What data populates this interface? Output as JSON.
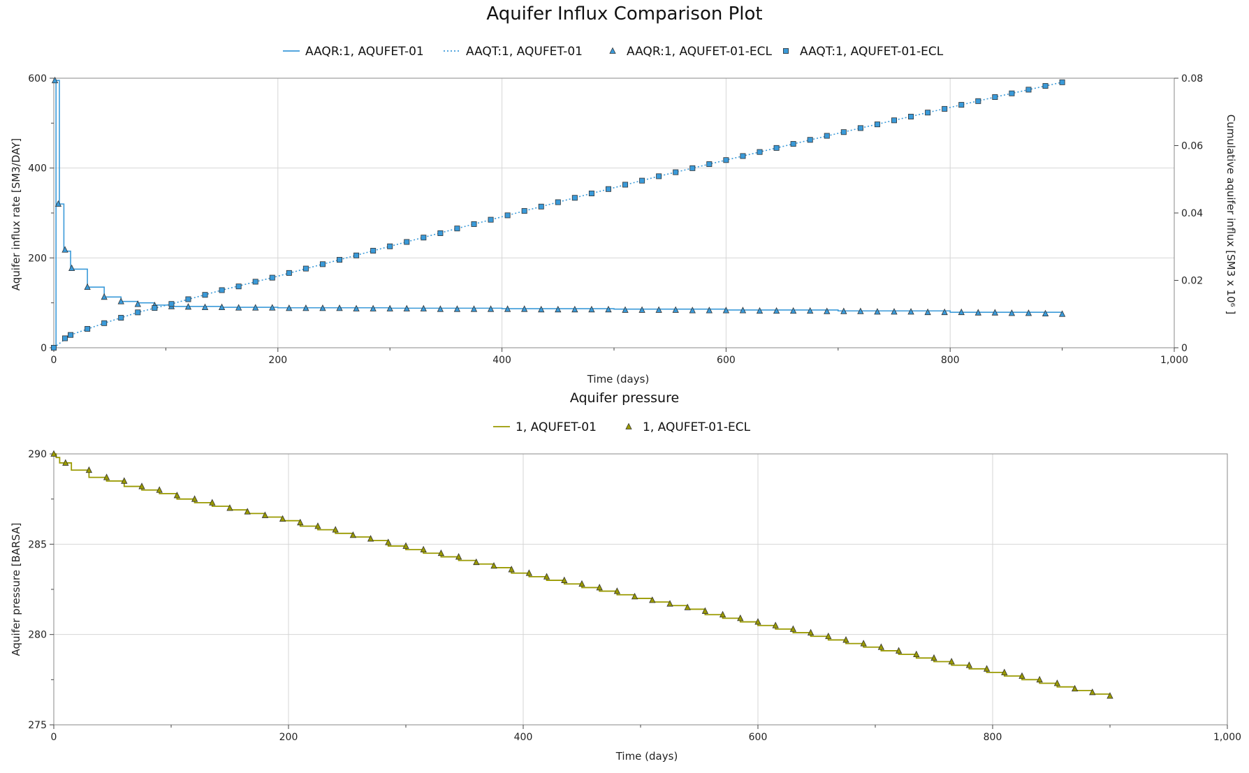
{
  "title": "Aquifer Influx Comparison Plot",
  "chart_data": [
    {
      "type": "line",
      "title": "",
      "xlabel": "Time (days)",
      "ylabel": "Aquifer influx rate [SM3/DAY]",
      "y2label": "Cumulative aquifer influx [SM3 x 10⁶ ]",
      "xlim": [
        0,
        1000
      ],
      "ylim": [
        0,
        600
      ],
      "y2lim": [
        0,
        0.08
      ],
      "xticks": [
        "0",
        "200",
        "400",
        "600",
        "800",
        "1,000"
      ],
      "yticks": [
        "0",
        "200",
        "400",
        "600"
      ],
      "y2ticks": [
        "0",
        "0.02",
        "0.04",
        "0.06",
        "0.08"
      ],
      "grid": true,
      "legend_position": "top",
      "series": [
        {
          "name": "AAQR:1, AQUFET-01",
          "style": "step-line",
          "axis": "left",
          "color": "#3a9ad9",
          "x": [
            0,
            2,
            5,
            9,
            15,
            30,
            45,
            60,
            75,
            90,
            105,
            150,
            200,
            300,
            400,
            500,
            600,
            700,
            800,
            900
          ],
          "y": [
            0,
            595,
            320,
            215,
            175,
            135,
            113,
            103,
            100,
            95,
            92,
            90,
            89,
            88,
            87,
            86,
            84,
            82,
            79,
            75
          ]
        },
        {
          "name": "AAQT:1, AQUFET-01",
          "style": "dotted-line",
          "axis": "right",
          "color": "#3a9ad9",
          "x": [
            0,
            15,
            45,
            75,
            105,
            150,
            195,
            240,
            300,
            360,
            420,
            480,
            540,
            600,
            660,
            720,
            780,
            840,
            900
          ],
          "y": [
            0,
            0.0038,
            0.0073,
            0.0105,
            0.013,
            0.0171,
            0.0208,
            0.0248,
            0.0301,
            0.0354,
            0.0406,
            0.0458,
            0.0509,
            0.0557,
            0.0605,
            0.0652,
            0.0698,
            0.0744,
            0.0788
          ]
        },
        {
          "name": "AAQR:1, AQUFET-01-ECL",
          "style": "triangle-markers",
          "axis": "left",
          "color": "#3a9ad9",
          "x": [
            1,
            4,
            10,
            16,
            30,
            45,
            60,
            75,
            90,
            105,
            120,
            135,
            150,
            165,
            180,
            195,
            210,
            225,
            240,
            255,
            270,
            285,
            300,
            315,
            330,
            345,
            360,
            375,
            390,
            405,
            420,
            435,
            450,
            465,
            480,
            495,
            510,
            525,
            540,
            555,
            570,
            585,
            600,
            615,
            630,
            645,
            660,
            675,
            690,
            705,
            720,
            735,
            750,
            765,
            780,
            795,
            810,
            825,
            840,
            855,
            870,
            885,
            900
          ],
          "y": [
            595,
            320,
            218,
            177,
            135,
            113,
            103,
            97,
            94,
            92,
            91,
            90,
            90,
            89,
            89,
            89,
            88,
            88,
            88,
            88,
            87,
            87,
            87,
            87,
            87,
            86,
            86,
            86,
            86,
            86,
            86,
            85,
            85,
            85,
            85,
            85,
            84,
            84,
            84,
            84,
            83,
            83,
            83,
            83,
            82,
            82,
            82,
            82,
            81,
            81,
            81,
            80,
            80,
            80,
            79,
            79,
            79,
            78,
            78,
            77,
            77,
            76,
            75
          ]
        },
        {
          "name": "AAQT:1, AQUFET-01-ECL",
          "style": "square-markers",
          "axis": "right",
          "color": "#3a9ad9",
          "x": [
            0,
            10,
            15,
            30,
            45,
            60,
            75,
            90,
            105,
            120,
            135,
            150,
            165,
            180,
            195,
            210,
            225,
            240,
            255,
            270,
            285,
            300,
            315,
            330,
            345,
            360,
            375,
            390,
            405,
            420,
            435,
            450,
            465,
            480,
            495,
            510,
            525,
            540,
            555,
            570,
            585,
            600,
            615,
            630,
            645,
            660,
            675,
            690,
            705,
            720,
            735,
            750,
            765,
            780,
            795,
            810,
            825,
            840,
            855,
            870,
            885,
            900
          ],
          "y": [
            0,
            0.0028,
            0.0038,
            0.0056,
            0.0073,
            0.0089,
            0.0105,
            0.0118,
            0.013,
            0.0144,
            0.0157,
            0.0171,
            0.0182,
            0.0196,
            0.0208,
            0.0222,
            0.0235,
            0.0248,
            0.0261,
            0.0274,
            0.0288,
            0.0301,
            0.0314,
            0.0327,
            0.034,
            0.0354,
            0.0367,
            0.038,
            0.0393,
            0.0406,
            0.0419,
            0.0432,
            0.0445,
            0.0458,
            0.0471,
            0.0484,
            0.0496,
            0.0509,
            0.0521,
            0.0533,
            0.0545,
            0.0557,
            0.0569,
            0.0581,
            0.0593,
            0.0605,
            0.0617,
            0.0629,
            0.064,
            0.0652,
            0.0663,
            0.0675,
            0.0686,
            0.0698,
            0.0709,
            0.0721,
            0.0732,
            0.0744,
            0.0755,
            0.0766,
            0.0777,
            0.0788
          ]
        }
      ]
    },
    {
      "type": "line",
      "title": "Aquifer pressure",
      "xlabel": "Time (days)",
      "ylabel": "Aquifer pressure [BARSA]",
      "xlim": [
        0,
        1000
      ],
      "ylim": [
        275,
        290
      ],
      "xticks": [
        "0",
        "200",
        "400",
        "600",
        "800",
        "1,000"
      ],
      "yticks": [
        "275",
        "280",
        "285",
        "290"
      ],
      "grid": true,
      "legend_position": "top",
      "series": [
        {
          "name": "1, AQUFET-01",
          "style": "step-line",
          "color": "#9a9a00",
          "x": [
            0,
            2,
            5,
            15,
            30,
            45,
            60,
            75,
            90,
            105,
            120,
            135,
            150,
            165,
            180,
            195,
            210,
            225,
            240,
            255,
            270,
            285,
            300,
            315,
            330,
            345,
            360,
            375,
            390,
            405,
            420,
            435,
            450,
            465,
            480,
            495,
            510,
            525,
            540,
            555,
            570,
            585,
            600,
            615,
            630,
            645,
            660,
            675,
            690,
            705,
            720,
            735,
            750,
            765,
            780,
            795,
            810,
            825,
            840,
            855,
            870,
            885,
            900
          ],
          "y": [
            290,
            289.8,
            289.5,
            289.1,
            288.7,
            288.5,
            288.2,
            288.0,
            287.8,
            287.5,
            287.3,
            287.1,
            286.9,
            286.7,
            286.5,
            286.3,
            286.0,
            285.8,
            285.6,
            285.4,
            285.2,
            284.9,
            284.7,
            284.5,
            284.3,
            284.1,
            283.9,
            283.7,
            283.4,
            283.2,
            283.0,
            282.8,
            282.6,
            282.4,
            282.2,
            282.0,
            281.8,
            281.6,
            281.4,
            281.1,
            280.9,
            280.7,
            280.5,
            280.3,
            280.1,
            279.9,
            279.7,
            279.5,
            279.3,
            279.1,
            278.9,
            278.7,
            278.5,
            278.3,
            278.1,
            277.9,
            277.7,
            277.5,
            277.3,
            277.1,
            276.9,
            276.7,
            276.5
          ]
        },
        {
          "name": "1, AQUFET-01-ECL",
          "style": "triangle-markers",
          "color": "#9a9a00",
          "x": [
            0,
            10,
            30,
            45,
            60,
            75,
            90,
            105,
            120,
            135,
            150,
            165,
            180,
            195,
            210,
            225,
            240,
            255,
            270,
            285,
            300,
            315,
            330,
            345,
            360,
            375,
            390,
            405,
            420,
            435,
            450,
            465,
            480,
            495,
            510,
            525,
            540,
            555,
            570,
            585,
            600,
            615,
            630,
            645,
            660,
            675,
            690,
            705,
            720,
            735,
            750,
            765,
            780,
            795,
            810,
            825,
            840,
            855,
            870,
            885,
            900
          ],
          "y": [
            290,
            289.5,
            289.1,
            288.7,
            288.5,
            288.2,
            288.0,
            287.7,
            287.5,
            287.3,
            287.0,
            286.8,
            286.6,
            286.4,
            286.2,
            286.0,
            285.8,
            285.5,
            285.3,
            285.1,
            284.9,
            284.7,
            284.5,
            284.3,
            284.0,
            283.8,
            283.6,
            283.4,
            283.2,
            283.0,
            282.8,
            282.6,
            282.4,
            282.1,
            281.9,
            281.7,
            281.5,
            281.3,
            281.1,
            280.9,
            280.7,
            280.5,
            280.3,
            280.1,
            279.9,
            279.7,
            279.5,
            279.3,
            279.1,
            278.9,
            278.7,
            278.5,
            278.3,
            278.1,
            277.9,
            277.7,
            277.5,
            277.3,
            277.0,
            276.8,
            276.6
          ]
        }
      ]
    }
  ]
}
